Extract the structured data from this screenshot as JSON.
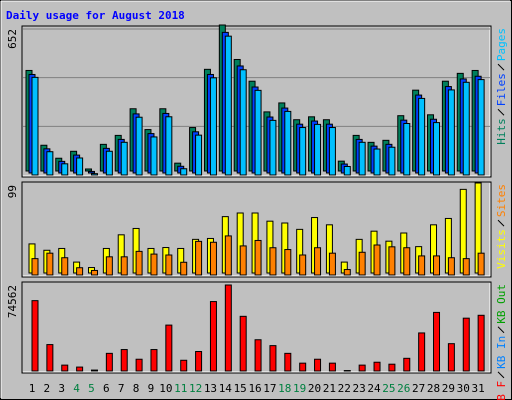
{
  "title": "Daily usage for August 2018",
  "chart_data": [
    {
      "type": "bar",
      "series": [
        {
          "name": "Hits",
          "color": "#00805c",
          "values": [
            449,
            115,
            57,
            88,
            9,
            119,
            159,
            278,
            185,
            278,
            35,
            194,
            454,
            652,
            498,
            401,
            264,
            304,
            229,
            242,
            229,
            44,
            159,
            128,
            137,
            247,
            361,
            251,
            401,
            436,
            449
          ]
        },
        {
          "name": "Files",
          "color": "#0040ff",
          "values": [
            440,
            108,
            52,
            80,
            7,
            110,
            150,
            264,
            176,
            266,
            30,
            184,
            440,
            628,
            478,
            384,
            250,
            290,
            218,
            232,
            218,
            40,
            150,
            120,
            128,
            236,
            348,
            240,
            386,
            420,
            432
          ]
        },
        {
          "name": "Pages",
          "color": "#00c0ff",
          "values": [
            436,
            104,
            50,
            76,
            6,
            106,
            146,
            258,
            170,
            260,
            28,
            178,
            434,
            620,
            470,
            378,
            244,
            284,
            212,
            226,
            212,
            38,
            146,
            116,
            124,
            230,
            342,
            234,
            380,
            414,
            426
          ]
        }
      ],
      "ylim": [
        0,
        652
      ],
      "yticks": [
        652
      ],
      "grid": true
    },
    {
      "type": "bar",
      "series": [
        {
          "name": "Visits",
          "color": "#ffff00",
          "values": [
            32,
            25,
            27,
            12,
            6,
            27,
            42,
            49,
            27,
            28,
            27,
            37,
            38,
            62,
            66,
            66,
            57,
            55,
            48,
            61,
            53,
            12,
            37,
            46,
            35,
            44,
            29,
            53,
            60,
            92,
            99
          ]
        },
        {
          "name": "Sites",
          "color": "#ff8000",
          "values": [
            18,
            24,
            19,
            8,
            5,
            20,
            20,
            26,
            23,
            22,
            14,
            37,
            36,
            43,
            32,
            38,
            30,
            28,
            22,
            30,
            24,
            6,
            25,
            33,
            31,
            30,
            21,
            21,
            19,
            18,
            24
          ]
        }
      ],
      "ylim": [
        0,
        99
      ],
      "yticks": [
        99
      ],
      "grid": false
    },
    {
      "type": "bar",
      "categories": [
        "1",
        "2",
        "3",
        "4",
        "5",
        "6",
        "7",
        "8",
        "9",
        "10",
        "11",
        "12",
        "13",
        "14",
        "15",
        "16",
        "17",
        "18",
        "19",
        "20",
        "21",
        "22",
        "23",
        "24",
        "25",
        "26",
        "27",
        "28",
        "29",
        "30",
        "31"
      ],
      "highlight_categories": [
        3,
        4,
        10,
        11,
        17,
        18,
        24,
        25
      ],
      "highlight_color": "#008040",
      "series": [
        {
          "name": "KB F",
          "color": "#ff0000",
          "values": [
            61000,
            22900,
            5100,
            3400,
            800,
            15300,
            18600,
            10200,
            18600,
            39800,
            9300,
            16900,
            60200,
            74562,
            47400,
            27100,
            22000,
            15300,
            6800,
            10200,
            6800,
            400,
            5100,
            7600,
            5900,
            11000,
            33000,
            50800,
            23700,
            45800,
            48300
          ]
        }
      ],
      "extra_labels": [
        {
          "text": "KB In",
          "color": "#0080ff"
        },
        {
          "text": "KB Out",
          "color": "#00a000"
        }
      ],
      "ylim": [
        0,
        74562
      ],
      "yticks": [
        74562
      ],
      "grid": false
    }
  ]
}
